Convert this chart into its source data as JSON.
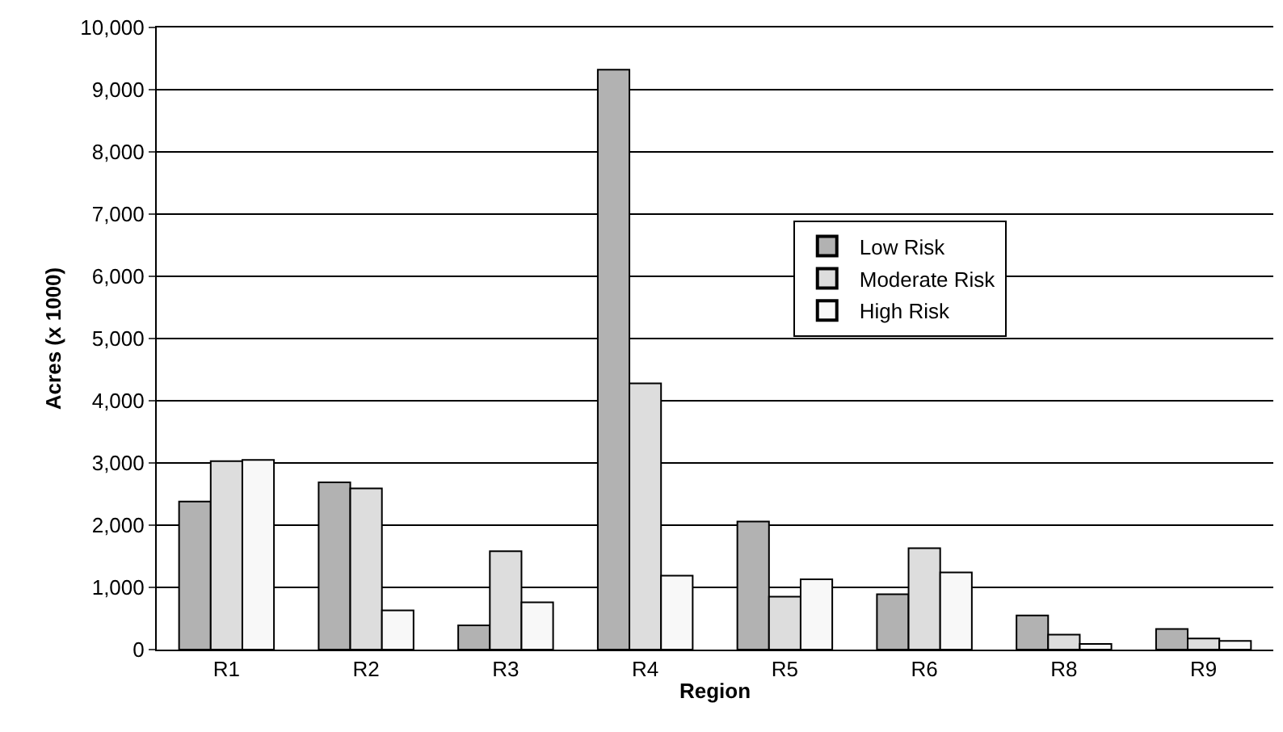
{
  "chart_data": {
    "type": "bar",
    "xlabel": "Region",
    "ylabel": "Acres (x 1000)",
    "categories": [
      "R1",
      "R2",
      "R3",
      "R4",
      "R5",
      "R6",
      "R8",
      "R9"
    ],
    "series": [
      {
        "name": "Low Risk",
        "color": "#b2b2b2",
        "values": [
          2380,
          2690,
          390,
          9320,
          2060,
          890,
          550,
          330
        ]
      },
      {
        "name": "Moderate Risk",
        "color": "#dddddd",
        "values": [
          3030,
          2590,
          1580,
          4280,
          850,
          1630,
          240,
          180
        ]
      },
      {
        "name": "High Risk",
        "color": "#f8f8f8",
        "values": [
          3050,
          630,
          760,
          1190,
          1130,
          1240,
          90,
          140
        ]
      }
    ],
    "ylim": [
      0,
      10000
    ],
    "yticks": [
      {
        "value": 0,
        "label": "0"
      },
      {
        "value": 1000,
        "label": "1,000"
      },
      {
        "value": 2000,
        "label": "2,000"
      },
      {
        "value": 3000,
        "label": "3,000"
      },
      {
        "value": 4000,
        "label": "4,000"
      },
      {
        "value": 5000,
        "label": "5,000"
      },
      {
        "value": 6000,
        "label": "6,000"
      },
      {
        "value": 7000,
        "label": "7,000"
      },
      {
        "value": 8000,
        "label": "8,000"
      },
      {
        "value": 9000,
        "label": "9,000"
      },
      {
        "value": 10000,
        "label": "10,000"
      }
    ],
    "grid": "y",
    "legend": "right"
  }
}
